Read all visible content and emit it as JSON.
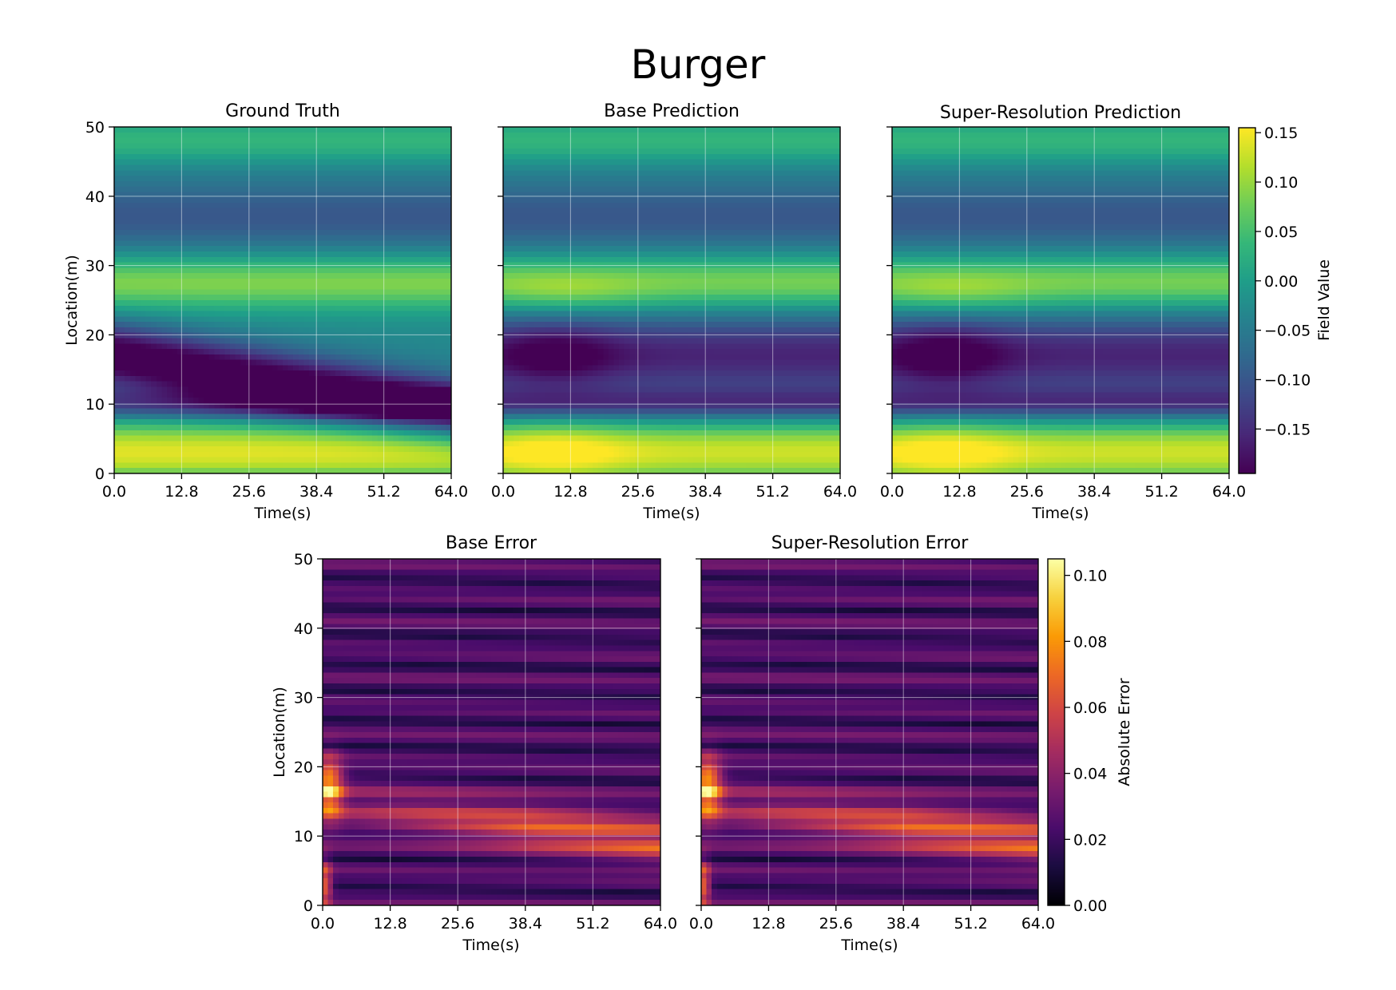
{
  "chart_data": [
    {
      "type": "heatmap",
      "title": "Ground Truth",
      "xlabel": "Time(s)",
      "ylabel": "Location(m)",
      "xlim": [
        0,
        64.0
      ],
      "ylim": [
        0,
        50
      ],
      "xticks": [
        "0.0",
        "12.8",
        "25.6",
        "38.4",
        "51.2",
        "64.0"
      ],
      "yticks": [
        "0",
        "10",
        "20",
        "30",
        "40",
        "50"
      ],
      "colormap": "viridis",
      "grid": true,
      "field": "burger_ground_truth"
    },
    {
      "type": "heatmap",
      "title": "Base Prediction",
      "xlabel": "Time(s)",
      "xlim": [
        0,
        64.0
      ],
      "ylim": [
        0,
        50
      ],
      "xticks": [
        "0.0",
        "12.8",
        "25.6",
        "38.4",
        "51.2",
        "64.0"
      ],
      "colormap": "viridis",
      "grid": true,
      "field": "burger_base_prediction"
    },
    {
      "type": "heatmap",
      "title": "Super-Resolution Prediction",
      "xlabel": "Time(s)",
      "xlim": [
        0,
        64.0
      ],
      "ylim": [
        0,
        50
      ],
      "xticks": [
        "0.0",
        "12.8",
        "25.6",
        "38.4",
        "51.2",
        "64.0"
      ],
      "colormap": "viridis",
      "grid": true,
      "field": "burger_sr_prediction"
    },
    {
      "type": "heatmap",
      "title": "Base Error",
      "xlabel": "Time(s)",
      "ylabel": "Location(m)",
      "xlim": [
        0,
        64.0
      ],
      "ylim": [
        0,
        50
      ],
      "xticks": [
        "0.0",
        "12.8",
        "25.6",
        "38.4",
        "51.2",
        "64.0"
      ],
      "yticks": [
        "0",
        "10",
        "20",
        "30",
        "40",
        "50"
      ],
      "colormap": "inferno",
      "grid": true,
      "field": "burger_base_error"
    },
    {
      "type": "heatmap",
      "title": "Super-Resolution Error",
      "xlabel": "Time(s)",
      "xlim": [
        0,
        64.0
      ],
      "ylim": [
        0,
        50
      ],
      "xticks": [
        "0.0",
        "12.8",
        "25.6",
        "38.4",
        "51.2",
        "64.0"
      ],
      "colormap": "inferno",
      "grid": true,
      "field": "burger_sr_error"
    }
  ],
  "suptitle": "Burger",
  "colorbars": [
    {
      "label": "Field Value",
      "colormap": "viridis",
      "range": [
        -0.195,
        0.155
      ],
      "ticks": [
        0.15,
        0.1,
        0.05,
        0.0,
        -0.05,
        -0.1,
        -0.15
      ],
      "tick_labels": [
        "0.15",
        "0.10",
        "0.05",
        "0.00",
        "−0.05",
        "−0.10",
        "−0.15"
      ]
    },
    {
      "label": "Absolute Error",
      "colormap": "inferno",
      "range": [
        0.0,
        0.105
      ],
      "ticks": [
        0.1,
        0.08,
        0.06,
        0.04,
        0.02,
        0.0
      ],
      "tick_labels": [
        "0.10",
        "0.08",
        "0.06",
        "0.04",
        "0.02",
        "0.00"
      ]
    }
  ]
}
